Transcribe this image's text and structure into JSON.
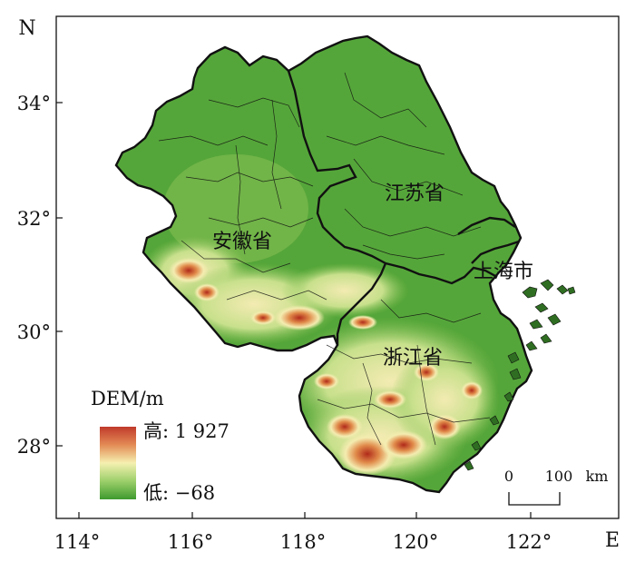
{
  "axes": {
    "north_letter": "N",
    "east_letter": "E",
    "longitudes": [
      "114°",
      "116°",
      "118°",
      "120°",
      "122°"
    ],
    "latitudes": [
      "34°",
      "32°",
      "30°",
      "28°"
    ]
  },
  "provinces": [
    {
      "id": "jiangsu",
      "label": "江苏省"
    },
    {
      "id": "anhui",
      "label": "安徽省"
    },
    {
      "id": "shanghai",
      "label": "上海市"
    },
    {
      "id": "zhejiang",
      "label": "浙江省"
    }
  ],
  "legend": {
    "title": "DEM/m",
    "high_label": "高: 1 927",
    "low_label": "低: −68",
    "colors": {
      "high": "#c0392b",
      "mid": "#f5f0b0",
      "low": "#3f9a2e"
    }
  },
  "scale_bar": {
    "zero": "0",
    "distance": "100",
    "unit": "km"
  },
  "colors": {
    "lowland": "#55a63a",
    "hill": "#8cc45a",
    "upland": "#f1ecb0",
    "mountain": "#c0392b",
    "border": "#111111"
  }
}
